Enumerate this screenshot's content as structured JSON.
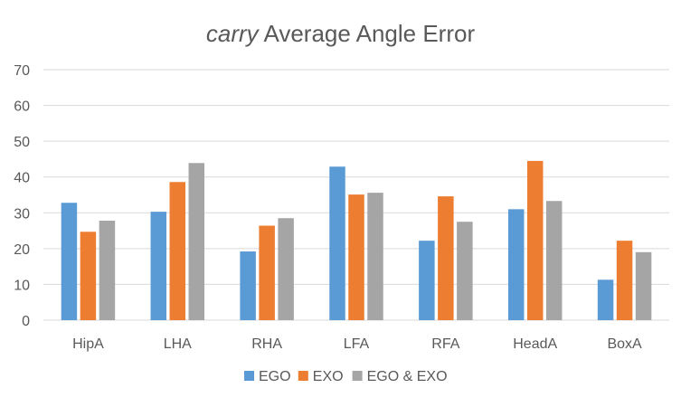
{
  "chart_data": {
    "type": "bar",
    "title_emphasis": "carry",
    "title_rest": "Average Angle Error",
    "xlabel": "",
    "ylabel": "",
    "ylim": [
      0,
      70
    ],
    "yticks": [
      0,
      10,
      20,
      30,
      40,
      50,
      60,
      70
    ],
    "grid": true,
    "legend_position": "bottom",
    "categories": [
      "HipA",
      "LHA",
      "RHA",
      "LFA",
      "RFA",
      "HeadA",
      "BoxA"
    ],
    "series": [
      {
        "name": "EGO",
        "color": "#5b9bd5",
        "values": [
          32.8,
          30.3,
          19.2,
          42.9,
          22.2,
          31.0,
          11.3
        ]
      },
      {
        "name": "EXO",
        "color": "#ed7d31",
        "values": [
          24.7,
          38.6,
          26.4,
          35.1,
          34.6,
          44.5,
          22.2
        ]
      },
      {
        "name": "EGO & EXO",
        "color": "#a5a5a5",
        "values": [
          27.8,
          43.9,
          28.5,
          35.6,
          27.5,
          33.3,
          19.0
        ]
      }
    ]
  }
}
